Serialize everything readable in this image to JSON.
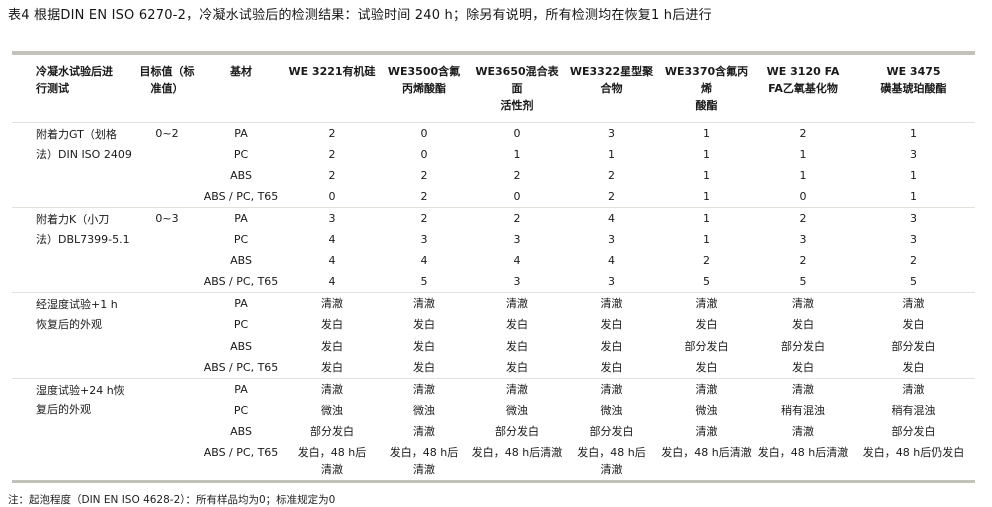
{
  "title": "表4 根据DIN EN ISO 6270-2，冷凝水试验后的检测结果：试验时间 240 h；除另有说明，所有检测均在恢复1 h后进行",
  "footnote": "注：起泡程度（DIN EN ISO 4628-2）：所有样品均为0；标准规定为0",
  "colors": {
    "rule_heavy": "#c3c2ba",
    "rule_light": "#e2e1db",
    "text": "#1a1a1a"
  },
  "table": {
    "columns": [
      "冷凝水试验后进\n行测试",
      "目标值（标\n准值）",
      "基材",
      "WE 3221有机硅",
      "WE3500含氟\n丙烯酸酯",
      "WE3650混合表面\n活性剂",
      "WE3322星型聚\n合物",
      "WE3370含氟丙烯\n酸酯",
      "WE 3120 FA\nFA乙氧基化物",
      "WE 3475\n磺基琥珀酸酯"
    ],
    "blocks": [
      {
        "test": "附着力GT（划格\n法）DIN ISO 2409",
        "target": "0~2",
        "rows": [
          {
            "substrate": "PA",
            "values": [
              "2",
              "0",
              "0",
              "3",
              "1",
              "2",
              "1"
            ]
          },
          {
            "substrate": "PC",
            "values": [
              "2",
              "0",
              "1",
              "1",
              "1",
              "1",
              "3"
            ]
          },
          {
            "substrate": "ABS",
            "values": [
              "2",
              "2",
              "2",
              "2",
              "1",
              "1",
              "1"
            ]
          },
          {
            "substrate": "ABS / PC, T65",
            "values": [
              "0",
              "2",
              "0",
              "2",
              "1",
              "0",
              "1"
            ]
          }
        ]
      },
      {
        "test": "附着力K（小刀\n法）DBL7399-5.1",
        "target": "0~3",
        "rows": [
          {
            "substrate": "PA",
            "values": [
              "3",
              "2",
              "2",
              "4",
              "1",
              "2",
              "3"
            ]
          },
          {
            "substrate": "PC",
            "values": [
              "4",
              "3",
              "3",
              "3",
              "1",
              "3",
              "3"
            ]
          },
          {
            "substrate": "ABS",
            "values": [
              "4",
              "4",
              "4",
              "4",
              "2",
              "2",
              "2"
            ]
          },
          {
            "substrate": "ABS / PC, T65",
            "values": [
              "4",
              "5",
              "3",
              "3",
              "5",
              "5",
              "5"
            ]
          }
        ]
      },
      {
        "test": "经湿度试验+1 h\n恢复后的外观",
        "target": "",
        "rows": [
          {
            "substrate": "PA",
            "values": [
              "清澈",
              "清澈",
              "清澈",
              "清澈",
              "清澈",
              "清澈",
              "清澈"
            ]
          },
          {
            "substrate": "PC",
            "values": [
              "发白",
              "发白",
              "发白",
              "发白",
              "发白",
              "发白",
              "发白"
            ]
          },
          {
            "substrate": "ABS",
            "values": [
              "发白",
              "发白",
              "发白",
              "发白",
              "部分发白",
              "部分发白",
              "部分发白"
            ]
          },
          {
            "substrate": "ABS / PC, T65",
            "values": [
              "发白",
              "发白",
              "发白",
              "发白",
              "发白",
              "发白",
              "发白"
            ]
          }
        ]
      },
      {
        "test": "湿度试验+24 h恢\n复后的外观",
        "target": "",
        "rows": [
          {
            "substrate": "PA",
            "values": [
              "清澈",
              "清澈",
              "清澈",
              "清澈",
              "清澈",
              "清澈",
              "清澈"
            ]
          },
          {
            "substrate": "PC",
            "values": [
              "微浊",
              "微浊",
              "微浊",
              "微浊",
              "微浊",
              "稍有混浊",
              "稍有混浊"
            ]
          },
          {
            "substrate": "ABS",
            "values": [
              "部分发白",
              "清澈",
              "部分发白",
              "部分发白",
              "清澈",
              "清澈",
              "部分发白"
            ]
          },
          {
            "substrate": "ABS / PC, T65",
            "values": [
              "发白，48 h后\n清澈",
              "发白，48 h后\n清澈",
              "发白，48 h后清澈",
              "发白，48 h后\n清澈",
              "发白，48 h后清澈",
              "发白，48 h后清澈",
              "发白，48 h后仍发白"
            ]
          }
        ]
      }
    ]
  }
}
